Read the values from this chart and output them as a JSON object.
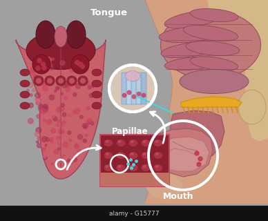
{
  "background_color": "#a0a0a0",
  "title_tongue": "Tongue",
  "title_papillae": "Papillae",
  "title_mouth": "Mouth",
  "watermark_bottom": "alamy - G15777",
  "tongue_body": "#c8606a",
  "tongue_dark": "#8b2030",
  "tongue_mid": "#b04050",
  "skin_tone": "#d4a080",
  "skin_dark": "#c08870",
  "brain_color": "#c07878",
  "brain_fold": "#a85868",
  "mouth_cavity": "#c07070",
  "tongue_in_mouth": "#d09090",
  "orange_epi": "#d4900a",
  "orange_epi2": "#e8a820",
  "bone_color": "#d4b888",
  "white": "#ffffff",
  "cyan_line": "#40d8e0",
  "bottom_bar": "#111111",
  "bottom_text": "#cccccc",
  "inset_circle_bg": "#e0cfc0",
  "inset_cell_blue": "#a8c8e8",
  "inset_cell_edge": "#6898c0",
  "papillae_box_dark": "#8a2030",
  "papillae_box_mid": "#b04050",
  "papillae_box_light": "#c87068",
  "arrow_white": "#ffffff"
}
